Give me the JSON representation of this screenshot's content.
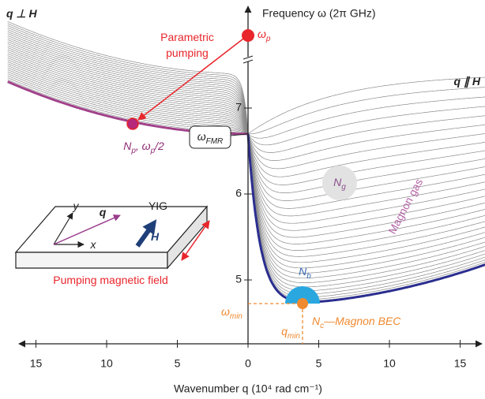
{
  "chart_data": {
    "type": "line",
    "y_label": "Frequency ω (2π GHz)",
    "x_label": "Wavenumber q (10⁴ rad cm⁻¹)",
    "xlim": [
      -16.2,
      16.2
    ],
    "ylim": [
      4.257,
      8.147
    ],
    "xticks": [
      {
        "value": -15,
        "label": "15"
      },
      {
        "value": -10,
        "label": "10"
      },
      {
        "value": -5,
        "label": "5"
      },
      0,
      5,
      10,
      15
    ],
    "yticks": [
      5,
      6,
      7
    ],
    "annotations": {
      "q_perp_h": [
        "q ⊥ H"
      ],
      "q_par_h": [
        "q ∥ H"
      ],
      "pumping_1": [
        "Parametric"
      ],
      "pumping_2": [
        "pumping"
      ],
      "omega_p": [
        "ω",
        "p"
      ],
      "n_p": [
        "N",
        "p",
        ", ω",
        "p",
        "/2"
      ],
      "omega_fmr": [
        "ω",
        "FMR"
      ],
      "n_g": [
        "N",
        "g"
      ],
      "magnon_gas": [
        "Magnon gas"
      ],
      "n_b": [
        "N",
        "b"
      ],
      "n_c": [
        "N",
        "c",
        "—Magnon BEC"
      ],
      "omega_min": [
        "ω",
        "min"
      ],
      "q_min": [
        "q",
        "min"
      ],
      "yig": [
        "YIG"
      ],
      "inset_q": [
        "q"
      ],
      "inset_h": [
        "H"
      ],
      "inset_x": [
        "x"
      ],
      "inset_y": [
        "y"
      ],
      "pumping_field": [
        "Pumping magnetic field"
      ]
    }
  }
}
